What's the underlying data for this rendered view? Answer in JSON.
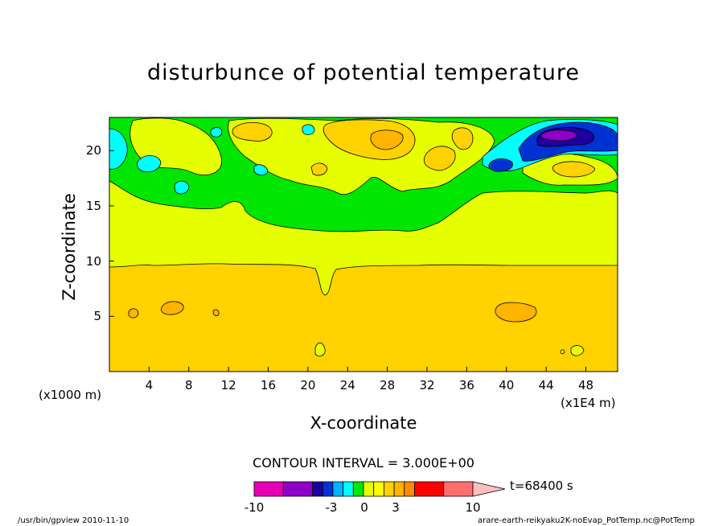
{
  "chart_data": {
    "type": "contour",
    "title": "disturbunce of potential temperature",
    "xlabel": "X-coordinate",
    "ylabel": "Z-coordinate",
    "x_units_left": "(x1000 m)",
    "x_units_right": "(x1E4 m)",
    "x_ticks": [
      "4",
      "8",
      "12",
      "16",
      "20",
      "24",
      "28",
      "32",
      "36",
      "40",
      "44",
      "48"
    ],
    "y_ticks": [
      "5",
      "10",
      "15",
      "20"
    ],
    "xlim": [
      0,
      51.2
    ],
    "ylim": [
      0,
      23
    ],
    "contour_interval": "CONTOUR INTERVAL = 3.000E+00",
    "time_label": "t=68400 s",
    "colorbar_ticks": [
      "-10",
      "-3",
      "0",
      "3",
      "10"
    ],
    "colorbar_colors": [
      "#e600b4",
      "#8c00c8",
      "#1e00a0",
      "#0032d2",
      "#00b4ff",
      "#00ffff",
      "#00e600",
      "#e6ff00",
      "#ffff00",
      "#ffd200",
      "#ffb400",
      "#ff8c00",
      "#ff0000",
      "#ff6e6e",
      "#ffbebe"
    ],
    "regions": {
      "lower_layer": {
        "from_z": 0,
        "to_z": 9.6,
        "color": "#ffd200"
      },
      "middle_layer": {
        "from_z": 9.6,
        "to_z": 13.5,
        "color": "#e6ff00"
      },
      "upper_layer": {
        "from_z": 13.5,
        "to_z": 23,
        "color": "#00e600"
      }
    }
  },
  "footer_left": "/usr/bin/gpview  2010-11-10",
  "footer_right": "arare-earth-reikyaku2K-noEvap_PotTemp.nc@PotTemp"
}
